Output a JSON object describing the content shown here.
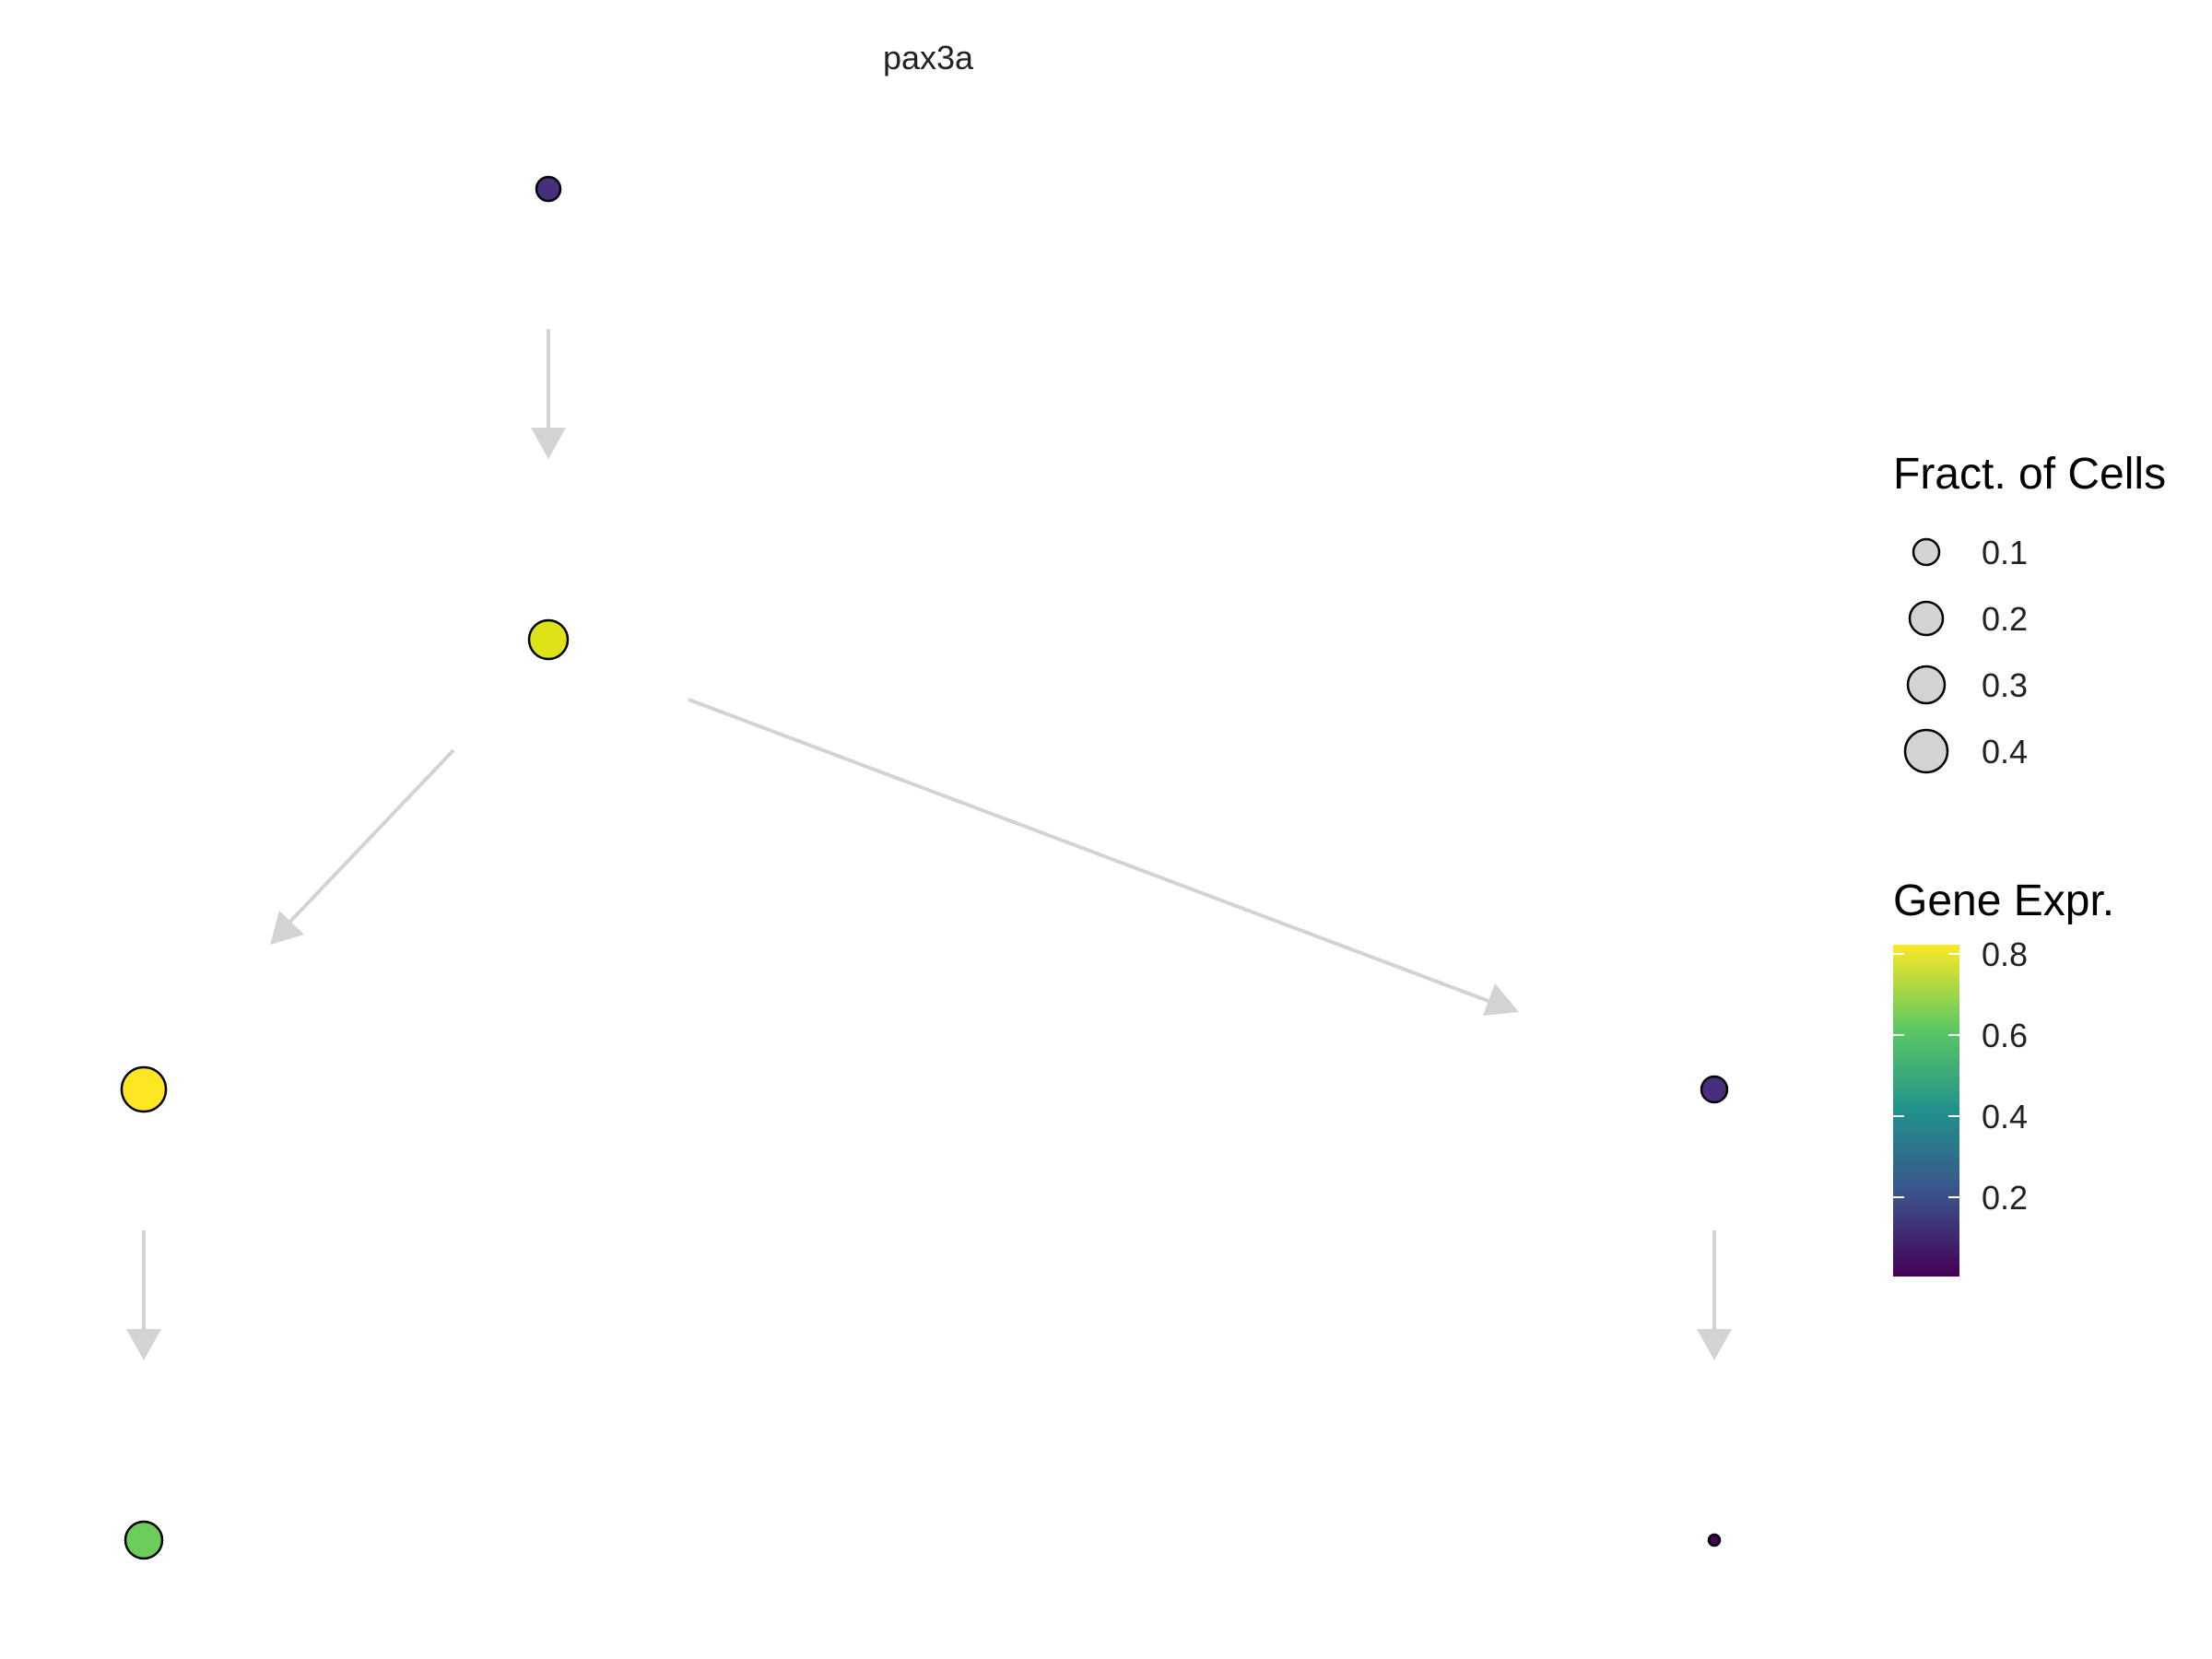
{
  "title": "pax3a",
  "diagram": {
    "nodes": [
      {
        "id": "root",
        "expr": 0.12,
        "fraction": 0.08,
        "color": "#472f7d"
      },
      {
        "id": "mid",
        "expr": 0.78,
        "fraction": 0.28,
        "color": "#dde318"
      },
      {
        "id": "left",
        "expr": 0.84,
        "fraction": 0.38,
        "color": "#fde725"
      },
      {
        "id": "left-child",
        "expr": 0.62,
        "fraction": 0.23,
        "color": "#6ccd5a"
      },
      {
        "id": "right",
        "expr": 0.12,
        "fraction": 0.1,
        "color": "#472f7d"
      },
      {
        "id": "right-child",
        "expr": 0.02,
        "fraction": 0.02,
        "color": "#440154"
      }
    ],
    "edges": [
      {
        "from": "root",
        "to": "mid"
      },
      {
        "from": "mid",
        "to": "left"
      },
      {
        "from": "mid",
        "to": "right"
      },
      {
        "from": "left",
        "to": "left-child"
      },
      {
        "from": "right",
        "to": "right-child"
      }
    ]
  },
  "legend_size": {
    "title": "Fract. of Cells",
    "items": [
      {
        "label": "0.1",
        "value": 0.1
      },
      {
        "label": "0.2",
        "value": 0.2
      },
      {
        "label": "0.3",
        "value": 0.3
      },
      {
        "label": "0.4",
        "value": 0.4
      }
    ],
    "fill": "#d3d3d3"
  },
  "legend_color": {
    "title": "Gene Expr.",
    "ticks": [
      "0.8",
      "0.6",
      "0.4",
      "0.2"
    ],
    "gradient": [
      "#fde725",
      "#5ec962",
      "#21918c",
      "#3b528b",
      "#440154"
    ]
  },
  "colors": {
    "arrow": "#d3d3d3",
    "outline": "#000000",
    "background": "#ffffff"
  }
}
